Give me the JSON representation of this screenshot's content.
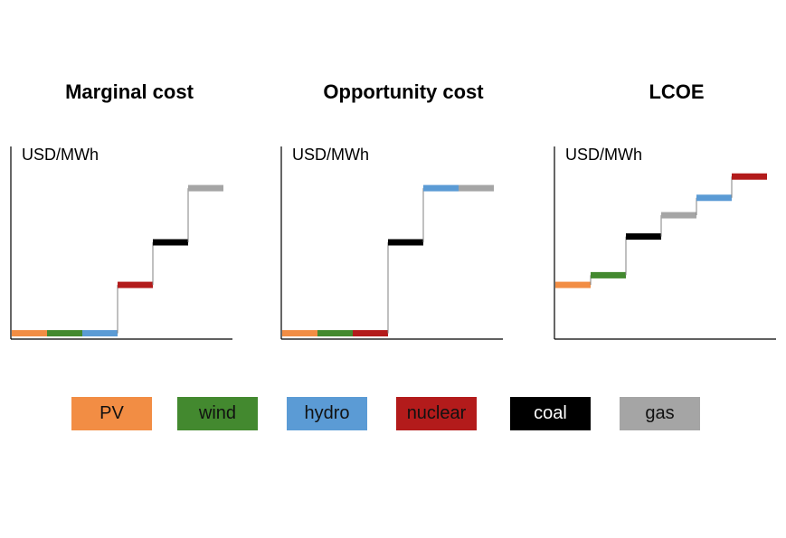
{
  "legend": [
    {
      "label": "PV",
      "color": "#f28d44"
    },
    {
      "label": "wind",
      "color": "#43892f"
    },
    {
      "label": "hydro",
      "color": "#5b9bd5"
    },
    {
      "label": "nuclear",
      "color": "#b31b1b"
    },
    {
      "label": "coal",
      "color": "#000000"
    },
    {
      "label": "gas",
      "color": "#a5a5a5"
    }
  ],
  "chart_data": [
    {
      "type": "line",
      "title": "Marginal cost",
      "ylabel": "USD/MWh",
      "xlabel": "",
      "ylim": [
        0,
        1
      ],
      "steps": [
        {
          "series": "PV",
          "value": 0.03
        },
        {
          "series": "wind",
          "value": 0.03
        },
        {
          "series": "hydro",
          "value": 0.03
        },
        {
          "series": "nuclear",
          "value": 0.28
        },
        {
          "series": "coal",
          "value": 0.5
        },
        {
          "series": "gas",
          "value": 0.78
        }
      ]
    },
    {
      "type": "line",
      "title": "Opportunity cost",
      "ylabel": "USD/MWh",
      "xlabel": "",
      "ylim": [
        0,
        1
      ],
      "steps": [
        {
          "series": "PV",
          "value": 0.03
        },
        {
          "series": "wind",
          "value": 0.03
        },
        {
          "series": "nuclear",
          "value": 0.03
        },
        {
          "series": "coal",
          "value": 0.5
        },
        {
          "series": "hydro",
          "value": 0.78
        },
        {
          "series": "gas",
          "value": 0.78
        }
      ]
    },
    {
      "type": "line",
      "title": "LCOE",
      "ylabel": "USD/MWh",
      "xlabel": "",
      "ylim": [
        0,
        1
      ],
      "steps": [
        {
          "series": "PV",
          "value": 0.28
        },
        {
          "series": "wind",
          "value": 0.33
        },
        {
          "series": "coal",
          "value": 0.53
        },
        {
          "series": "gas",
          "value": 0.64
        },
        {
          "series": "hydro",
          "value": 0.73
        },
        {
          "series": "nuclear",
          "value": 0.84
        }
      ]
    }
  ]
}
